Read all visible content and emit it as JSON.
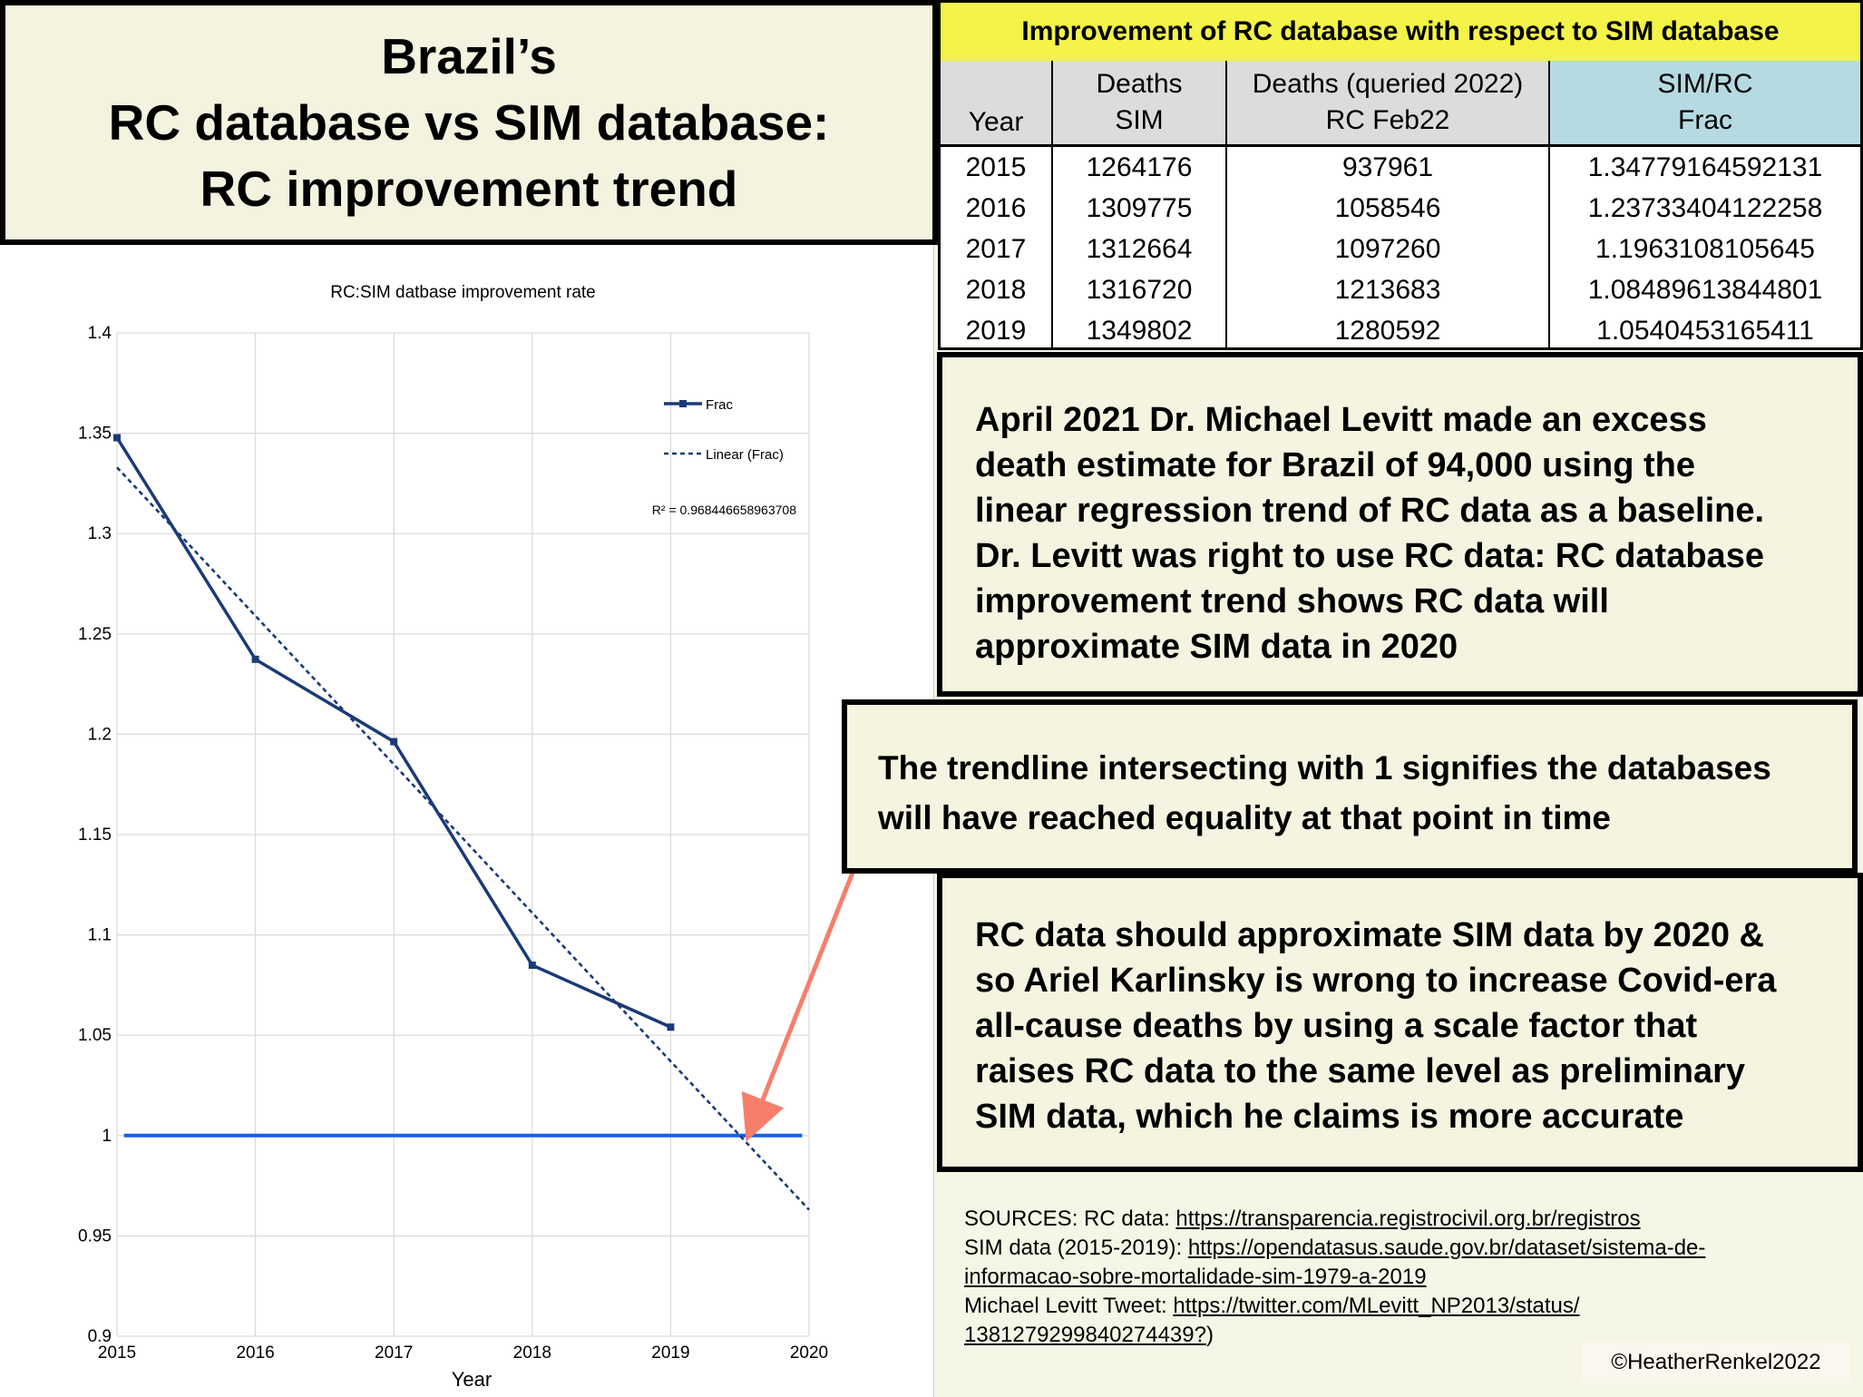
{
  "title": {
    "line1": "Brazil’s",
    "line2": "RC database vs SIM database:",
    "line3": "RC improvement trend"
  },
  "table": {
    "caption": "Improvement of RC database with respect to SIM database",
    "headers": [
      {
        "line1": "",
        "line2": "Year"
      },
      {
        "line1": "Deaths",
        "line2": "SIM"
      },
      {
        "line1": "Deaths (queried 2022)",
        "line2": "RC Feb22"
      },
      {
        "line1": "SIM/RC",
        "line2": "Frac"
      }
    ],
    "rows": [
      [
        "2015",
        "1264176",
        "937961",
        "1.34779164592131"
      ],
      [
        "2016",
        "1309775",
        "1058546",
        "1.23733404122258"
      ],
      [
        "2017",
        "1312664",
        "1097260",
        "1.1963108105645"
      ],
      [
        "2018",
        "1316720",
        "1213683",
        "1.08489613844801"
      ],
      [
        "2019",
        "1349802",
        "1280592",
        "1.0540453165411"
      ]
    ]
  },
  "notes": {
    "note1": [
      "April 2021 Dr. Michael Levitt made an excess",
      "death estimate for Brazil of 94,000 using the",
      "linear regression trend of RC data as a baseline.",
      "Dr. Levitt was right to use RC data: RC database",
      "improvement trend shows RC data will",
      "approximate SIM data in 2020"
    ],
    "note2": [
      "The trendline intersecting with 1 signifies the databases",
      "will have reached equality at that point in time"
    ],
    "note3": [
      "RC data should approximate SIM data by 2020 &",
      "so Ariel Karlinsky is wrong to increase Covid-era",
      "all-cause deaths by using a scale factor that",
      "raises RC data to the same level as preliminary",
      "SIM data, which he claims is more accurate"
    ]
  },
  "sources": {
    "line1_prefix": "SOURCES:  RC data: ",
    "line1_link": "https://transparencia.registrocivil.org.br/registros",
    "line2_prefix": "SIM data (2015-2019): ",
    "line2_link": "https://opendatasus.saude.gov.br/dataset/sistema-de-",
    "line3_link": "informacao-sobre-mortalidade-sim-1979-a-2019",
    "line4_prefix": "Michael Levitt Tweet: ",
    "line4_link": "https://twitter.com/MLevitt_NP2013/status/",
    "line5_link": "1381279299840274439?",
    "line5_suffix": ")"
  },
  "copyright": "©HeatherRenkel2022",
  "colors": {
    "series": "#1a3a78",
    "reference_line": "#1560e8",
    "arrow": "#f57f6a",
    "caption_bg": "#f3f34a",
    "frac_header_bg": "#b6dae2"
  },
  "chart_data": {
    "type": "line",
    "title": "RC:SIM datbase improvement rate",
    "xlabel": "Year",
    "ylabel": "",
    "x_ticks": [
      "2015",
      "2016",
      "2017",
      "2018",
      "2019",
      "2020"
    ],
    "y_ticks": [
      "0.9",
      "0.95",
      "1",
      "1.05",
      "1.1",
      "1.15",
      "1.2",
      "1.25",
      "1.3",
      "1.35",
      "1.4"
    ],
    "xlim": [
      2015,
      2020
    ],
    "ylim": [
      0.9,
      1.4
    ],
    "grid": true,
    "legend_position": "top-right",
    "series": [
      {
        "name": "Frac",
        "x": [
          2015,
          2016,
          2017,
          2018,
          2019
        ],
        "values": [
          1.34779164592131,
          1.23733404122258,
          1.1963108105645,
          1.08489613844801,
          1.0540453165411
        ]
      }
    ],
    "trendline": {
      "name": "Linear (Frac)",
      "x": [
        2015,
        2020
      ],
      "values": [
        1.333,
        0.963
      ],
      "r2_label": "R² = 0.968446658963708"
    },
    "reference_line": {
      "y": 1,
      "x": [
        2015.05,
        2019.95
      ]
    }
  }
}
